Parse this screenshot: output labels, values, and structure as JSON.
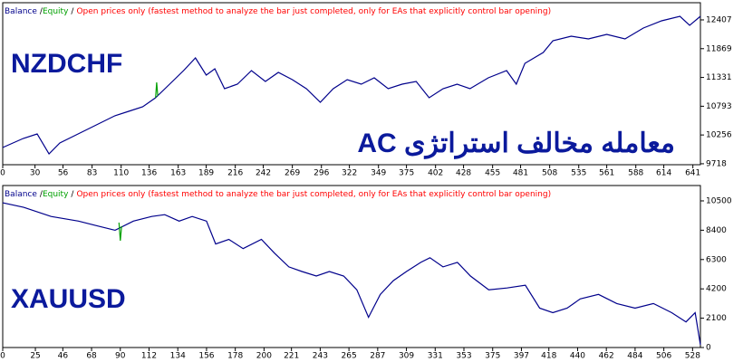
{
  "chart_data": [
    {
      "type": "line",
      "annotations": [
        "NZDCHF",
        "معامله مخالف استراتژی AC"
      ],
      "legend_separator": "/",
      "mode": "Open prices only (fastest method to analyze the bar just completed, only for EAs that explicitly control bar opening)",
      "mode_color": "#ff0000",
      "xlim": [
        0,
        648
      ],
      "ylim": [
        9700,
        12728
      ],
      "xticks": [
        0,
        30,
        56,
        83,
        110,
        136,
        163,
        189,
        216,
        242,
        269,
        296,
        322,
        349,
        375,
        402,
        428,
        455,
        481,
        508,
        535,
        561,
        588,
        614,
        641
      ],
      "yticks": [
        9718,
        10256,
        10793,
        11331,
        11869,
        12407
      ],
      "series": [
        {
          "name": "Balance",
          "color": "#00008b",
          "x": [
            0,
            19,
            32,
            43,
            53,
            70,
            87,
            104,
            117,
            130,
            142,
            155,
            168,
            179,
            189,
            197,
            206,
            218,
            231,
            244,
            256,
            269,
            282,
            295,
            307,
            320,
            333,
            345,
            358,
            371,
            384,
            396,
            409,
            422,
            434,
            451,
            468,
            477,
            485,
            502,
            511,
            528,
            544,
            561,
            578,
            595,
            612,
            629,
            638,
            648
          ],
          "values": [
            10021,
            10190,
            10275,
            9903,
            10106,
            10275,
            10444,
            10613,
            10698,
            10783,
            10952,
            11206,
            11460,
            11696,
            11375,
            11493,
            11121,
            11206,
            11460,
            11256,
            11426,
            11290,
            11121,
            10867,
            11121,
            11290,
            11206,
            11324,
            11121,
            11206,
            11256,
            10952,
            11121,
            11206,
            11121,
            11324,
            11460,
            11206,
            11595,
            11798,
            12018,
            12102,
            12052,
            12136,
            12052,
            12255,
            12390,
            12475,
            12305,
            12475
          ]
        },
        {
          "name": "Equity",
          "color": "#00a000",
          "x": [
            142,
            143,
            144
          ],
          "values": [
            10952,
            11240,
            10990
          ]
        }
      ]
    },
    {
      "type": "line",
      "annotations": [
        "XAUUSD"
      ],
      "legend_separator": "/",
      "mode": "Open prices only (fastest method to analyze the bar just completed, only for EAs that explicitly control bar opening)",
      "mode_color": "#ff0000",
      "xlim": [
        0,
        534
      ],
      "ylim": [
        0,
        11600
      ],
      "xticks": [
        0,
        25,
        46,
        68,
        90,
        112,
        134,
        156,
        178,
        200,
        221,
        243,
        265,
        287,
        309,
        331,
        353,
        375,
        397,
        418,
        440,
        462,
        484,
        506,
        528
      ],
      "yticks": [
        0,
        2100,
        4200,
        6300,
        8400,
        10500
      ],
      "series": [
        {
          "name": "Balance",
          "color": "#00008b",
          "x": [
            0,
            16,
            37,
            58,
            72,
            86,
            100,
            114,
            124,
            135,
            145,
            156,
            163,
            173,
            184,
            198,
            208,
            219,
            229,
            240,
            250,
            261,
            271,
            280,
            289,
            299,
            309,
            320,
            327,
            337,
            348,
            358,
            372,
            386,
            400,
            411,
            421,
            432,
            442,
            456,
            470,
            484,
            498,
            512,
            523,
            530,
            534
          ],
          "values": [
            10365,
            10037,
            9381,
            9053,
            8725,
            8397,
            9053,
            9381,
            9512,
            9053,
            9381,
            9053,
            7413,
            7741,
            7085,
            7741,
            6757,
            5773,
            5445,
            5117,
            5445,
            5117,
            4133,
            2165,
            3805,
            4789,
            5445,
            6101,
            6429,
            5773,
            6101,
            5117,
            4133,
            4264,
            4461,
            2821,
            2493,
            2821,
            3477,
            3805,
            3149,
            2821,
            3149,
            2493,
            1837,
            2493,
            197
          ]
        },
        {
          "name": "Equity",
          "color": "#00a000",
          "x": [
            89,
            90,
            91
          ],
          "values": [
            8950,
            7650,
            8700
          ]
        }
      ]
    }
  ]
}
